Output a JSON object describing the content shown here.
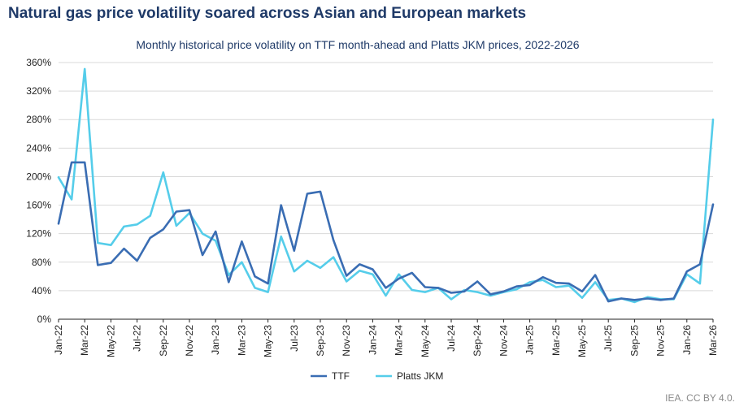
{
  "header": {
    "title": "Natural gas price volatility soared across Asian and European markets"
  },
  "footer": {
    "credit": "IEA. CC BY 4.0."
  },
  "colors": {
    "ttf": "#3a6db3",
    "jkm": "#55cdea",
    "grid": "#d9d9d9",
    "axis": "#222222"
  },
  "chart_data": {
    "type": "line",
    "title": "Monthly historical price volatility on TTF month-ahead and Platts JKM prices, 2022-2026",
    "xlabel": "",
    "ylabel": "",
    "ylim": [
      0,
      360
    ],
    "yticks": [
      0,
      40,
      80,
      120,
      160,
      200,
      240,
      280,
      320,
      360
    ],
    "ytick_labels": [
      "0%",
      "40%",
      "80%",
      "120%",
      "160%",
      "200%",
      "240%",
      "280%",
      "320%",
      "360%"
    ],
    "grid": true,
    "legend": "bottom-center",
    "categories": [
      "Jan-22",
      "Feb-22",
      "Mar-22",
      "Apr-22",
      "May-22",
      "Jun-22",
      "Jul-22",
      "Aug-22",
      "Sep-22",
      "Oct-22",
      "Nov-22",
      "Dec-22",
      "Jan-23",
      "Feb-23",
      "Mar-23",
      "Apr-23",
      "May-23",
      "Jun-23",
      "Jul-23",
      "Aug-23",
      "Sep-23",
      "Oct-23",
      "Nov-23",
      "Dec-23",
      "Jan-24",
      "Feb-24",
      "Mar-24",
      "Apr-24",
      "May-24",
      "Jun-24",
      "Jul-24",
      "Aug-24",
      "Sep-24",
      "Oct-24",
      "Nov-24",
      "Dec-24",
      "Jan-25",
      "Feb-25",
      "Mar-25",
      "Apr-25",
      "May-25",
      "Jun-25",
      "Jul-25",
      "Aug-25",
      "Sep-25",
      "Oct-25",
      "Nov-25",
      "Dec-25",
      "Jan-26",
      "Feb-26",
      "Mar-26"
    ],
    "tick_labels": [
      "Jan-22",
      "Mar-22",
      "May-22",
      "Jul-22",
      "Sep-22",
      "Nov-22",
      "Jan-23",
      "Mar-23",
      "May-23",
      "Jul-23",
      "Sep-23",
      "Nov-23",
      "Jan-24",
      "Mar-24",
      "May-24",
      "Jul-24",
      "Sep-24",
      "Nov-24",
      "Jan-25",
      "Mar-25",
      "May-25",
      "Jul-25",
      "Sep-25",
      "Nov-25",
      "Jan-26",
      "Mar-26"
    ],
    "series": [
      {
        "name": "TTF",
        "values": [
          134,
          220,
          220,
          76,
          79,
          99,
          82,
          114,
          126,
          151,
          153,
          90,
          123,
          52,
          109,
          60,
          50,
          160,
          96,
          176,
          179,
          111,
          61,
          77,
          70,
          44,
          57,
          65,
          45,
          44,
          37,
          39,
          53,
          35,
          39,
          46,
          48,
          59,
          51,
          50,
          39,
          62,
          25,
          29,
          27,
          29,
          27,
          29,
          67,
          77,
          161
        ]
      },
      {
        "name": "Platts JKM",
        "values": [
          199,
          168,
          351,
          107,
          104,
          130,
          133,
          145,
          206,
          131,
          149,
          120,
          110,
          62,
          80,
          44,
          38,
          116,
          67,
          82,
          72,
          87,
          53,
          68,
          63,
          33,
          63,
          41,
          38,
          44,
          28,
          41,
          38,
          33,
          38,
          42,
          52,
          55,
          45,
          47,
          30,
          52,
          27,
          29,
          24,
          31,
          28,
          28,
          63,
          50,
          280
        ]
      }
    ]
  }
}
